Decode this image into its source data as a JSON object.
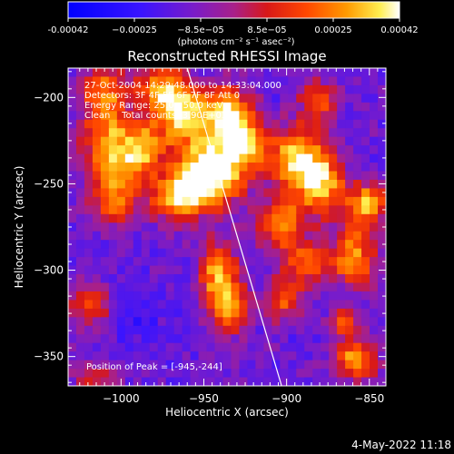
{
  "chart_data": {
    "type": "heatmap",
    "title": "Reconstructed RHESSI Image",
    "xlabel": "Heliocentric X (arcsec)",
    "ylabel": "Heliocentric Y (arcsec)",
    "xlim": [
      -1032,
      -840
    ],
    "ylim": [
      -367,
      -183
    ],
    "xticks": [
      -1000,
      -950,
      -900,
      -850
    ],
    "xtick_labels": [
      "−1000",
      "−950",
      "−900",
      "−850"
    ],
    "yticks": [
      -200,
      -250,
      -300,
      -350
    ],
    "ytick_labels": [
      "−200",
      "−250",
      "−300",
      "−350"
    ],
    "colorbar": {
      "range": [
        -0.00042,
        0.00042
      ],
      "tick_labels": [
        "-0.00042",
        "−0.00025",
        "−8.5e−05",
        "8.5e−05",
        "0.00025",
        "0.00042"
      ],
      "units_label": "(photons cm⁻² s⁻¹ asec⁻²)"
    },
    "annotations": [
      "27-Oct-2004 14:29:48.000 to 14:33:04.000",
      "Detectors: 3F 4F 5F 6F 7F 8F Att 0",
      "Energy Range: 25.0 - 50.0 keV",
      "Clean    Total counts: 3.90E+03"
    ],
    "peak_label": "Position of Peak = [-945,-244]",
    "peak": [
      -945,
      -244
    ],
    "limb_line": [
      [
        -960,
        -183
      ],
      [
        -903,
        -367
      ]
    ],
    "sources": [
      {
        "x": -1010,
        "y": -200,
        "sx": 10,
        "sy": 14,
        "a": 0.75
      },
      {
        "x": -1005,
        "y": -235,
        "sx": 14,
        "sy": 14,
        "a": 0.95
      },
      {
        "x": -1003,
        "y": -262,
        "sx": 10,
        "sy": 10,
        "a": 0.6
      },
      {
        "x": -975,
        "y": -195,
        "sx": 11,
        "sy": 9,
        "a": 0.8
      },
      {
        "x": -962,
        "y": -212,
        "sx": 12,
        "sy": 12,
        "a": 0.9
      },
      {
        "x": -945,
        "y": -244,
        "sx": 14,
        "sy": 13,
        "a": 1.25
      },
      {
        "x": -935,
        "y": -210,
        "sx": 10,
        "sy": 12,
        "a": 0.95
      },
      {
        "x": -965,
        "y": -258,
        "sx": 12,
        "sy": 10,
        "a": 0.85
      },
      {
        "x": -922,
        "y": -226,
        "sx": 9,
        "sy": 12,
        "a": 0.75
      },
      {
        "x": -893,
        "y": -236,
        "sx": 11,
        "sy": 13,
        "a": 0.9
      },
      {
        "x": -877,
        "y": -250,
        "sx": 10,
        "sy": 13,
        "a": 0.9
      },
      {
        "x": -902,
        "y": -274,
        "sx": 10,
        "sy": 10,
        "a": 0.75
      },
      {
        "x": -887,
        "y": -297,
        "sx": 10,
        "sy": 9,
        "a": 0.65
      },
      {
        "x": -848,
        "y": -262,
        "sx": 9,
        "sy": 9,
        "a": 0.85
      },
      {
        "x": -857,
        "y": -293,
        "sx": 10,
        "sy": 12,
        "a": 0.8
      },
      {
        "x": -940,
        "y": -302,
        "sx": 8,
        "sy": 12,
        "a": 0.85
      },
      {
        "x": -932,
        "y": -324,
        "sx": 9,
        "sy": 10,
        "a": 0.8
      },
      {
        "x": -900,
        "y": -318,
        "sx": 8,
        "sy": 8,
        "a": 0.6
      },
      {
        "x": -856,
        "y": -352,
        "sx": 10,
        "sy": 8,
        "a": 0.8
      },
      {
        "x": -863,
        "y": -330,
        "sx": 6,
        "sy": 6,
        "a": 0.55
      },
      {
        "x": -1018,
        "y": -322,
        "sx": 9,
        "sy": 9,
        "a": 0.55
      },
      {
        "x": -1015,
        "y": -363,
        "sx": 10,
        "sy": 6,
        "a": 0.45
      },
      {
        "x": -878,
        "y": -202,
        "sx": 8,
        "sy": 9,
        "a": 0.6
      },
      {
        "x": -985,
        "y": -230,
        "sx": 8,
        "sy": 10,
        "a": 0.6
      }
    ],
    "grid": false,
    "colormap": "blue-purple-red-yellow-white"
  },
  "footer": {
    "date": "4-May-2022 11:18"
  }
}
